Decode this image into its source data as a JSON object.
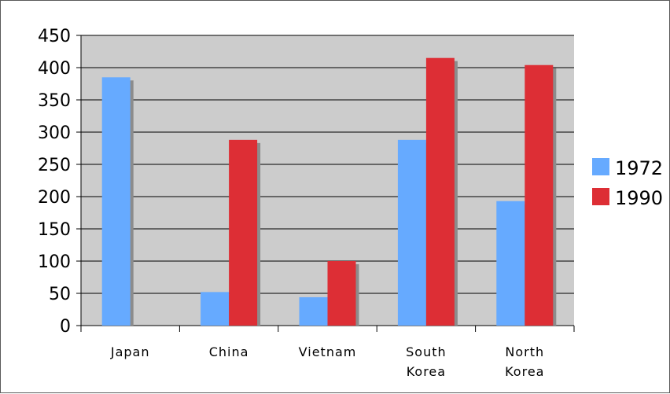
{
  "chart_data": {
    "type": "bar",
    "title": "",
    "xlabel": "",
    "ylabel": "",
    "categories": [
      [
        "Japan"
      ],
      [
        "China"
      ],
      [
        "Vietnam"
      ],
      [
        "South",
        "Korea"
      ],
      [
        "North",
        "Korea"
      ]
    ],
    "series": [
      {
        "name": "1972",
        "color": "#66aaff",
        "values": [
          385,
          52,
          44,
          288,
          193
        ]
      },
      {
        "name": "1990",
        "color": "#dd2e35",
        "values": [
          0,
          288,
          100,
          415,
          404
        ]
      }
    ],
    "ylim": [
      0,
      450
    ],
    "yticks": [
      "0",
      "50",
      "100",
      "150",
      "200",
      "250",
      "300",
      "350",
      "400",
      "450"
    ],
    "grid": true,
    "plot_background": "#cccccc",
    "legend_position": "right"
  }
}
